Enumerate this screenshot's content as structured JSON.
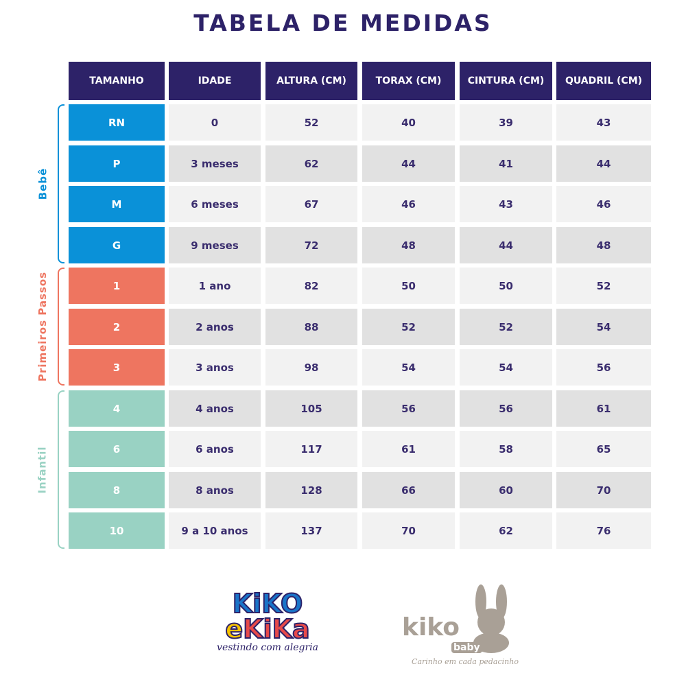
{
  "title": "TABELA DE MEDIDAS",
  "headers": [
    "TAMANHO",
    "IDADE",
    "ALTURA (CM)",
    "TORAX (CM)",
    "CINTURA (CM)",
    "QUADRIL (CM)"
  ],
  "colors": {
    "header": "#2d2268",
    "bebe": "#0a91d8",
    "primeiros": "#ee7560",
    "infantil": "#99d2c3",
    "row_light": "#f2f2f2",
    "row_dark": "#e1e1e1"
  },
  "groups": [
    {
      "label": "Bebê",
      "key": "bebe",
      "rows": 4
    },
    {
      "label": "Primeiros Passos",
      "key": "primeiros",
      "rows": 3
    },
    {
      "label": "Infantil",
      "key": "infantil",
      "rows": 4
    }
  ],
  "rows": [
    [
      "RN",
      "0",
      "52",
      "40",
      "39",
      "43"
    ],
    [
      "P",
      "3 meses",
      "62",
      "44",
      "41",
      "44"
    ],
    [
      "M",
      "6 meses",
      "67",
      "46",
      "43",
      "46"
    ],
    [
      "G",
      "9 meses",
      "72",
      "48",
      "44",
      "48"
    ],
    [
      "1",
      "1 ano",
      "82",
      "50",
      "50",
      "52"
    ],
    [
      "2",
      "2 anos",
      "88",
      "52",
      "52",
      "54"
    ],
    [
      "3",
      "3 anos",
      "98",
      "54",
      "54",
      "56"
    ],
    [
      "4",
      "4 anos",
      "105",
      "56",
      "56",
      "61"
    ],
    [
      "6",
      "6 anos",
      "117",
      "61",
      "58",
      "65"
    ],
    [
      "8",
      "8 anos",
      "128",
      "66",
      "60",
      "70"
    ],
    [
      "10",
      "9 a 10 anos",
      "137",
      "70",
      "62",
      "76"
    ]
  ],
  "logos": {
    "kikoekika": {
      "line1": "KiKO",
      "mid": "e",
      "line2": "KiKa",
      "tagline": "vestindo com alegria"
    },
    "kikobaby": {
      "name": "kiko",
      "sub": "baby",
      "tagline": "Carinho em cada pedacinho"
    }
  }
}
